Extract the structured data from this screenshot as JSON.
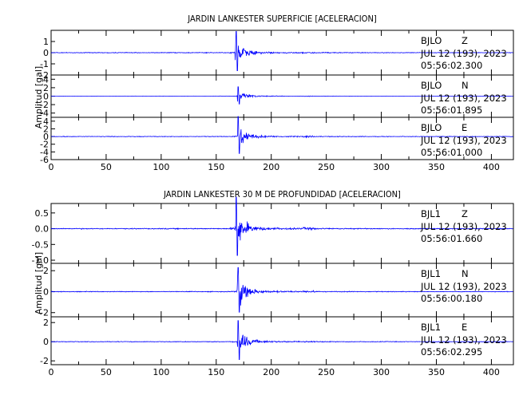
{
  "chart_data": [
    {
      "type": "line",
      "title": "JARDIN LANKESTER SUPERFICIE [ACELERACION]",
      "ylabel": "Amplitud [gal]",
      "xlim": [
        0,
        420
      ],
      "x_ticks": [
        "0",
        "50",
        "100",
        "150",
        "200",
        "250",
        "300",
        "350",
        "400"
      ],
      "traces": [
        {
          "station": "BJLO",
          "component": "Z",
          "date": "JUL 12 (193), 2023",
          "time": "05:56:02.300",
          "ylim": [
            -2,
            2
          ],
          "y_ticks": [
            "1",
            "0",
            "-1",
            "-2"
          ],
          "peak_amplitude": 1.9,
          "event_onset_s": 168,
          "line_color": "#0000ff"
        },
        {
          "station": "BJLO",
          "component": "N",
          "date": "JUL 12 (193), 2023",
          "time": "05:56:01.895",
          "ylim": [
            -5,
            5
          ],
          "y_ticks": [
            "4",
            "2",
            "0",
            "-2",
            "-4"
          ],
          "peak_amplitude": 2.2,
          "event_onset_s": 170,
          "line_color": "#0000ff"
        },
        {
          "station": "BJLO",
          "component": "E",
          "date": "JUL 12 (193), 2023",
          "time": "05:56:01.000",
          "ylim": [
            -6,
            5
          ],
          "y_ticks": [
            "4",
            "2",
            "0",
            "-2",
            "-4",
            "-6"
          ],
          "peak_amplitude": 5.2,
          "event_onset_s": 170,
          "line_color": "#0000ff"
        }
      ]
    },
    {
      "type": "line",
      "title": "JARDIN LANKESTER 30 M DE PROFUNDIDAD [ACELERACION]",
      "ylabel": "Amplitud [gal]",
      "xlim": [
        0,
        420
      ],
      "x_ticks": [
        "0",
        "50",
        "100",
        "150",
        "200",
        "250",
        "300",
        "350",
        "400"
      ],
      "traces": [
        {
          "station": "BJL1",
          "component": "Z",
          "date": "JUL 12 (193), 2023",
          "time": "05:56:01.660",
          "ylim": [
            -1.1,
            0.8
          ],
          "y_ticks": [
            "0.5",
            "0.0",
            "-0.5",
            "-1.0"
          ],
          "peak_amplitude": 1.0,
          "event_onset_s": 168,
          "line_color": "#0000ff"
        },
        {
          "station": "BJL1",
          "component": "N",
          "date": "JUL 12 (193), 2023",
          "time": "05:56:00.180",
          "ylim": [
            -2.4,
            2.7
          ],
          "y_ticks": [
            "2",
            "0",
            "-2"
          ],
          "peak_amplitude": 2.3,
          "event_onset_s": 170,
          "line_color": "#0000ff"
        },
        {
          "station": "BJL1",
          "component": "E",
          "date": "JUL 12 (193), 2023",
          "time": "05:56:02.295",
          "ylim": [
            -2.4,
            2.6
          ],
          "y_ticks": [
            "2",
            "0",
            "-2"
          ],
          "peak_amplitude": 2.2,
          "event_onset_s": 170,
          "line_color": "#0000ff"
        }
      ]
    }
  ]
}
